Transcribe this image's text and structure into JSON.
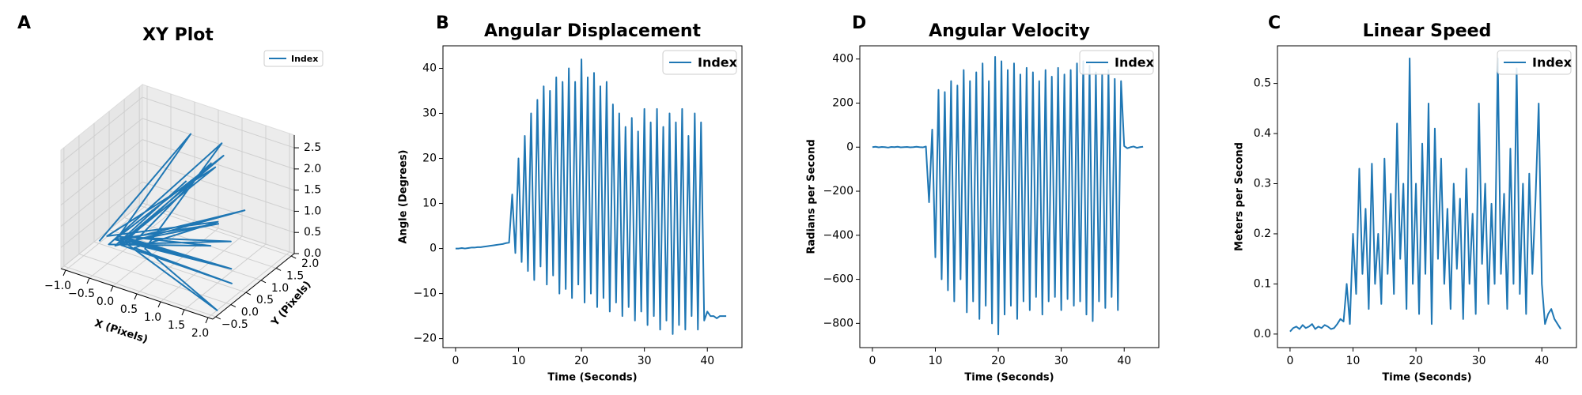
{
  "chart_data": [
    {
      "type": "line3d",
      "panel_label": "A",
      "title": "XY Plot",
      "xlabel": "X (Pixels)",
      "ylabel": "Y (Pixels)",
      "legend": "upper right",
      "grid": true,
      "series": [
        {
          "name": "Index",
          "color": "#1f77b4",
          "x": [
            -0.8,
            0.3,
            -0.5,
            1.2,
            -0.3,
            0.8,
            -0.6,
            1.6,
            -0.2,
            0.5,
            -0.7,
            1.0,
            0.0,
            1.8,
            -0.4,
            0.6,
            -0.1,
            1.4,
            -0.5,
            0.9,
            -0.3,
            2.0,
            0.1,
            0.7,
            -0.6,
            1.1,
            -0.2,
            1.5,
            -0.4,
            0.4
          ],
          "y": [
            0.2,
            1.5,
            0.3,
            1.0,
            0.1,
            1.8,
            0.4,
            0.8,
            0.2,
            2.0,
            0.3,
            1.3,
            0.1,
            0.5,
            0.3,
            1.7,
            0.2,
            1.1,
            0.4,
            0.6,
            0.1,
            -0.3,
            0.3,
            1.9,
            0.2,
            0.9,
            0.4,
            1.4,
            0.1,
            1.2
          ],
          "z": [
            0.3,
            2.5,
            0.4,
            1.0,
            0.5,
            2.0,
            0.3,
            0.2,
            0.6,
            1.5,
            0.4,
            0.8,
            0.5,
            0.1,
            0.3,
            1.8,
            0.5,
            0.6,
            0.4,
            0.3,
            0.6,
            0.0,
            0.4,
            2.2,
            0.3,
            0.5,
            0.5,
            1.2,
            0.4,
            1.6
          ]
        }
      ],
      "xlim": [
        -1.1,
        2.1
      ],
      "ylim": [
        -0.6,
        2.1
      ],
      "zlim": [
        0,
        2.8
      ],
      "xticks": [
        {
          "value": -1,
          "label": "−1.0"
        },
        {
          "value": -0.5,
          "label": "−0.5"
        },
        {
          "value": 0,
          "label": "0.0"
        },
        0.5,
        {
          "value": 1,
          "label": "1.0"
        },
        1.5,
        {
          "value": 2,
          "label": "2.0"
        }
      ],
      "yticks": [
        {
          "value": -0.5,
          "label": "−0.5"
        },
        {
          "value": 0,
          "label": "0.0"
        },
        0.5,
        {
          "value": 1,
          "label": "1.0"
        },
        1.5,
        {
          "value": 2,
          "label": "2.0"
        }
      ],
      "zticks": [
        {
          "value": 0,
          "label": "0.0"
        },
        0.5,
        {
          "value": 1,
          "label": "1.0"
        },
        1.5,
        {
          "value": 2,
          "label": "2.0"
        },
        2.5
      ]
    },
    {
      "type": "line",
      "panel_label": "B",
      "title": "Angular Displacement",
      "xlabel": "Time (Seconds)",
      "ylabel": "Angle (Degrees)",
      "legend": "upper right",
      "x": [
        0,
        0.5,
        1,
        1.5,
        2,
        2.5,
        3,
        3.5,
        4,
        4.5,
        5,
        5.5,
        6,
        6.5,
        7,
        7.5,
        8,
        8.5,
        9,
        9.5,
        10,
        10.5,
        11,
        11.5,
        12,
        12.5,
        13,
        13.5,
        14,
        14.5,
        15,
        15.5,
        16,
        16.5,
        17,
        17.5,
        18,
        18.5,
        19,
        19.5,
        20,
        20.5,
        21,
        21.5,
        22,
        22.5,
        23,
        23.5,
        24,
        24.5,
        25,
        25.5,
        26,
        26.5,
        27,
        27.5,
        28,
        28.5,
        29,
        29.5,
        30,
        30.5,
        31,
        31.5,
        32,
        32.5,
        33,
        33.5,
        34,
        34.5,
        35,
        35.5,
        36,
        36.5,
        37,
        37.5,
        38,
        38.5,
        39,
        39.5,
        40,
        40.5,
        41,
        41.5,
        42,
        42.5,
        43
      ],
      "series": [
        {
          "name": "Index",
          "color": "#1f77b4",
          "values": [
            0,
            0,
            0.1,
            0,
            0.1,
            0.2,
            0.2,
            0.3,
            0.3,
            0.4,
            0.5,
            0.6,
            0.7,
            0.8,
            0.9,
            1,
            1.2,
            1.3,
            12,
            -1,
            20,
            -3,
            25,
            -5,
            30,
            -7,
            33,
            -4,
            36,
            -8,
            35,
            -6,
            38,
            -10,
            37,
            -9,
            40,
            -11,
            37,
            -8,
            42,
            -12,
            38,
            -10,
            39,
            -13,
            36,
            -11,
            37,
            -14,
            32,
            -12,
            30,
            -15,
            27,
            -13,
            29,
            -16,
            26,
            -14,
            31,
            -17,
            28,
            -15,
            31,
            -18,
            27,
            -16,
            30,
            -19,
            28,
            -17,
            31,
            -18,
            25,
            -15,
            30,
            -18,
            28,
            -16,
            -14,
            -15,
            -15,
            -15.5,
            -15,
            -15,
            -15
          ]
        }
      ],
      "xlim": [
        -2,
        45.5
      ],
      "ylim": [
        -22,
        45
      ],
      "xticks": [
        0,
        10,
        20,
        30,
        40
      ],
      "yticks": [
        {
          "value": -20,
          "label": "−20"
        },
        {
          "value": -10,
          "label": "−10"
        },
        0,
        10,
        20,
        30,
        40
      ]
    },
    {
      "type": "line",
      "panel_label": "D",
      "title": "Angular Velocity",
      "xlabel": "Time (Seconds)",
      "ylabel": "Radians per Second",
      "legend": "upper right",
      "x": [
        0,
        0.5,
        1,
        1.5,
        2,
        2.5,
        3,
        3.5,
        4,
        4.5,
        5,
        5.5,
        6,
        6.5,
        7,
        7.5,
        8,
        8.5,
        9,
        9.5,
        10,
        10.5,
        11,
        11.5,
        12,
        12.5,
        13,
        13.5,
        14,
        14.5,
        15,
        15.5,
        16,
        16.5,
        17,
        17.5,
        18,
        18.5,
        19,
        19.5,
        20,
        20.5,
        21,
        21.5,
        22,
        22.5,
        23,
        23.5,
        24,
        24.5,
        25,
        25.5,
        26,
        26.5,
        27,
        27.5,
        28,
        28.5,
        29,
        29.5,
        30,
        30.5,
        31,
        31.5,
        32,
        32.5,
        33,
        33.5,
        34,
        34.5,
        35,
        35.5,
        36,
        36.5,
        37,
        37.5,
        38,
        38.5,
        39,
        39.5,
        40,
        40.5,
        41,
        41.5,
        42,
        42.5,
        43
      ],
      "series": [
        {
          "name": "Index",
          "color": "#1f77b4",
          "values": [
            0,
            2,
            -1,
            1,
            0,
            -2,
            1,
            0,
            2,
            -1,
            0,
            1,
            -1,
            0,
            2,
            0,
            -1,
            3,
            -250,
            80,
            -500,
            260,
            -600,
            250,
            -650,
            300,
            -700,
            280,
            -600,
            350,
            -750,
            300,
            -700,
            340,
            -780,
            380,
            -720,
            300,
            -800,
            410,
            -850,
            390,
            -760,
            350,
            -720,
            380,
            -780,
            330,
            -700,
            360,
            -740,
            340,
            -680,
            300,
            -760,
            350,
            -700,
            320,
            -680,
            360,
            -740,
            330,
            -690,
            350,
            -720,
            380,
            -700,
            390,
            -760,
            370,
            -790,
            340,
            -700,
            330,
            -730,
            350,
            -680,
            310,
            -740,
            300,
            5,
            -5,
            0,
            3,
            -3,
            0,
            2
          ]
        }
      ],
      "xlim": [
        -2,
        45.5
      ],
      "ylim": [
        -910,
        460
      ],
      "xticks": [
        0,
        10,
        20,
        30,
        40
      ],
      "yticks": [
        {
          "value": -800,
          "label": "−800"
        },
        {
          "value": -600,
          "label": "−600"
        },
        {
          "value": -400,
          "label": "−400"
        },
        {
          "value": -200,
          "label": "−200"
        },
        0,
        200,
        400
      ]
    },
    {
      "type": "line",
      "panel_label": "C",
      "title": "Linear Speed",
      "xlabel": "Time (Seconds)",
      "ylabel": "Meters per Second",
      "legend": "upper right",
      "x": [
        0,
        0.5,
        1,
        1.5,
        2,
        2.5,
        3,
        3.5,
        4,
        4.5,
        5,
        5.5,
        6,
        6.5,
        7,
        7.5,
        8,
        8.5,
        9,
        9.5,
        10,
        10.5,
        11,
        11.5,
        12,
        12.5,
        13,
        13.5,
        14,
        14.5,
        15,
        15.5,
        16,
        16.5,
        17,
        17.5,
        18,
        18.5,
        19,
        19.5,
        20,
        20.5,
        21,
        21.5,
        22,
        22.5,
        23,
        23.5,
        24,
        24.5,
        25,
        25.5,
        26,
        26.5,
        27,
        27.5,
        28,
        28.5,
        29,
        29.5,
        30,
        30.5,
        31,
        31.5,
        32,
        32.5,
        33,
        33.5,
        34,
        34.5,
        35,
        35.5,
        36,
        36.5,
        37,
        37.5,
        38,
        38.5,
        39,
        39.5,
        40,
        40.5,
        41,
        41.5,
        42,
        42.5,
        43
      ],
      "series": [
        {
          "name": "Index",
          "color": "#1f77b4",
          "values": [
            0.005,
            0.012,
            0.015,
            0.01,
            0.018,
            0.012,
            0.015,
            0.02,
            0.01,
            0.015,
            0.012,
            0.018,
            0.015,
            0.01,
            0.012,
            0.02,
            0.03,
            0.025,
            0.1,
            0.02,
            0.2,
            0.08,
            0.33,
            0.12,
            0.25,
            0.05,
            0.34,
            0.1,
            0.2,
            0.06,
            0.35,
            0.12,
            0.28,
            0.08,
            0.42,
            0.15,
            0.3,
            0.05,
            0.55,
            0.1,
            0.3,
            0.04,
            0.38,
            0.12,
            0.46,
            0.02,
            0.41,
            0.15,
            0.35,
            0.1,
            0.25,
            0.05,
            0.3,
            0.13,
            0.27,
            0.03,
            0.33,
            0.1,
            0.24,
            0.04,
            0.46,
            0.14,
            0.3,
            0.06,
            0.26,
            0.1,
            0.55,
            0.12,
            0.28,
            0.05,
            0.37,
            0.1,
            0.53,
            0.08,
            0.3,
            0.04,
            0.32,
            0.12,
            0.27,
            0.46,
            0.1,
            0.02,
            0.04,
            0.05,
            0.03,
            0.02,
            0.01
          ]
        }
      ],
      "xlim": [
        -2,
        45.5
      ],
      "ylim": [
        -0.027,
        0.575
      ],
      "xticks": [
        0,
        10,
        20,
        30,
        40
      ],
      "yticks": [
        {
          "value": 0,
          "label": "0.0"
        },
        0.1,
        0.2,
        0.3,
        0.4,
        0.5
      ]
    }
  ]
}
